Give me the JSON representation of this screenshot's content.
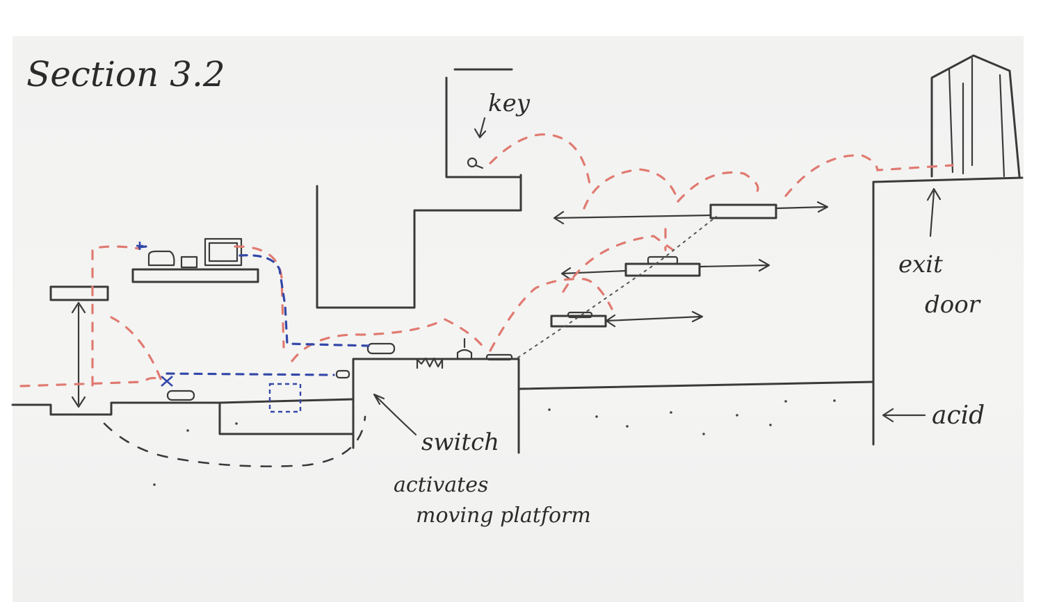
{
  "labels": {
    "title": "Section 3.2",
    "key": "key",
    "exit": "exit",
    "door": "door",
    "acid": "acid",
    "switch": "switch",
    "activates": "activates",
    "moving_platform": "moving platform"
  },
  "colors": {
    "ink": "#3a3a3a",
    "red_path": "#e07a70",
    "blue_path": "#3348a8",
    "paper": "#f3f3f2"
  }
}
